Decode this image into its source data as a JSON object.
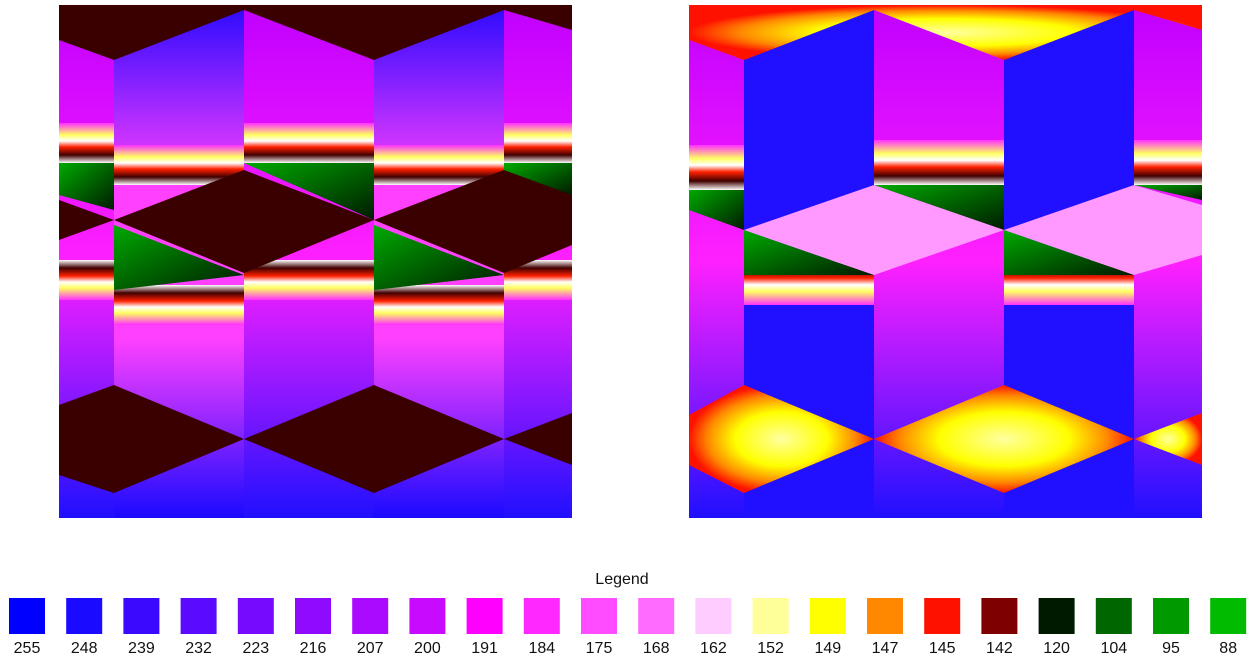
{
  "legend": {
    "title": "Legend",
    "items": [
      {
        "color": "#0000ff",
        "label": "255"
      },
      {
        "color": "#1a0aff",
        "label": "248"
      },
      {
        "color": "#3a0aff",
        "label": "239"
      },
      {
        "color": "#5a0aff",
        "label": "232"
      },
      {
        "color": "#760aff",
        "label": "223"
      },
      {
        "color": "#900aff",
        "label": "216"
      },
      {
        "color": "#aa0aff",
        "label": "207"
      },
      {
        "color": "#c80aff",
        "label": "200"
      },
      {
        "color": "#ff00ff",
        "label": "191"
      },
      {
        "color": "#ff28ff",
        "label": "184"
      },
      {
        "color": "#ff4cff",
        "label": "175"
      },
      {
        "color": "#ff6aff",
        "label": "168"
      },
      {
        "color": "#ffccff",
        "label": "162"
      },
      {
        "color": "#ffff99",
        "label": "152"
      },
      {
        "color": "#ffff00",
        "label": "149"
      },
      {
        "color": "#ff8800",
        "label": "147"
      },
      {
        "color": "#ff1100",
        "label": "145"
      },
      {
        "color": "#7f0000",
        "label": "142"
      },
      {
        "color": "#001a00",
        "label": "120"
      },
      {
        "color": "#006600",
        "label": "104"
      },
      {
        "color": "#009900",
        "label": "95"
      },
      {
        "color": "#00bb00",
        "label": "88"
      }
    ]
  }
}
